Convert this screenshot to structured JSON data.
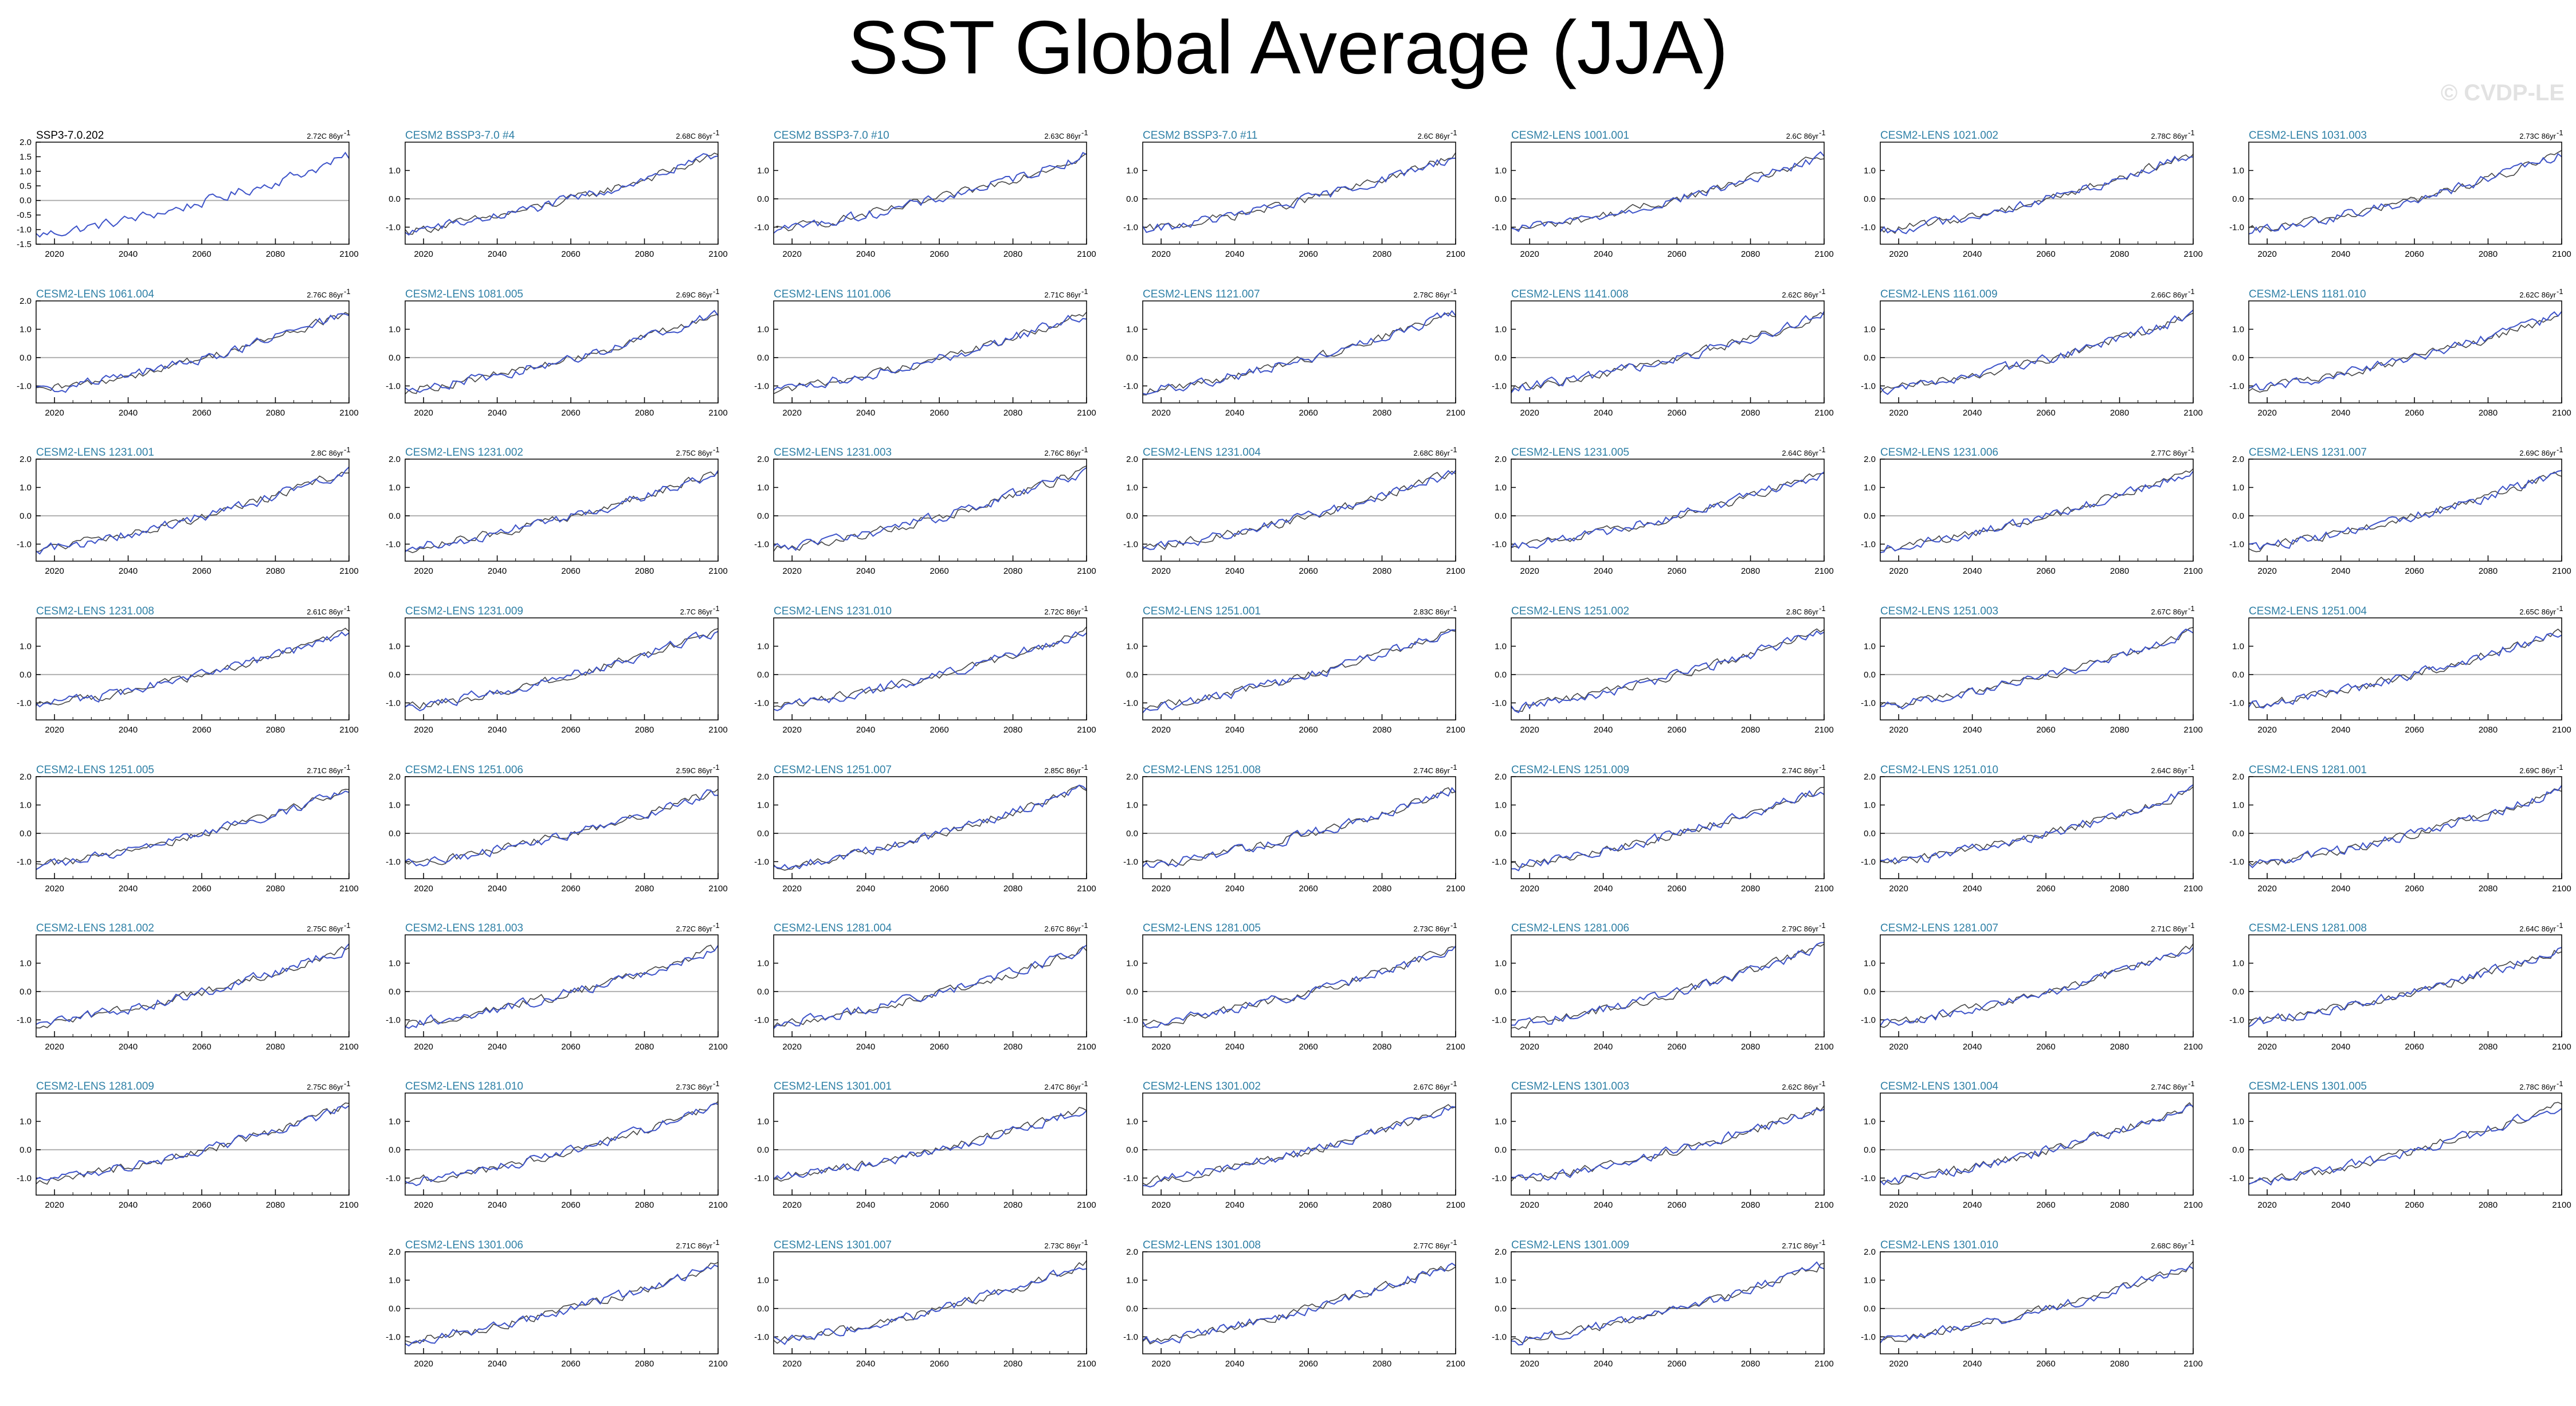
{
  "title": "SST Global Average (JJA)",
  "watermark": "© CVDP-LE",
  "colors": {
    "obs": "#000000",
    "model_line": "#3d53c9",
    "model_title": "#2f80a6",
    "zero_line": "#b0b0b0"
  },
  "chart_data": {
    "type": "line",
    "x_range": [
      2015,
      2100
    ],
    "x_ticks": [
      "2020",
      "2040",
      "2060",
      "2080",
      "2100"
    ],
    "panels": [
      {
        "name": "SSP3-7.0.202",
        "trend": "2.72C 86yr",
        "y_ticks": [
          "2.0",
          "1.5",
          "1.0",
          "0.5",
          "0.0",
          "-0.5",
          "-1.0",
          "-1.5"
        ],
        "ylim": [
          -1.5,
          2.0
        ],
        "start": -1.2,
        "end": 1.5,
        "obs": true
      },
      {
        "name": "CESM2 BSSP3-7.0 #4",
        "trend": "2.68C 86yr",
        "y_ticks": [
          "1.0",
          "0.0",
          "-1.0"
        ],
        "ylim": [
          -1.6,
          2.0
        ],
        "start": -1.15,
        "end": 1.55
      },
      {
        "name": "CESM2 BSSP3-7.0 #10",
        "trend": "2.63C 86yr",
        "y_ticks": [
          "1.0",
          "0.0",
          "-1.0"
        ],
        "ylim": [
          -1.6,
          2.0
        ],
        "start": -1.1,
        "end": 1.55
      },
      {
        "name": "CESM2 BSSP3-7.0 #11",
        "trend": "2.6C 86yr",
        "y_ticks": [
          "1.0",
          "0.0",
          "-1.0"
        ],
        "ylim": [
          -1.6,
          2.0
        ],
        "start": -1.1,
        "end": 1.5
      },
      {
        "name": "CESM2-LENS 1001.001",
        "trend": "2.6C 86yr",
        "y_ticks": [
          "1.0",
          "0.0",
          "-1.0"
        ],
        "ylim": [
          -1.6,
          2.0
        ],
        "start": -1.1,
        "end": 1.5
      },
      {
        "name": "CESM2-LENS 1021.002",
        "trend": "2.78C 86yr",
        "y_ticks": [
          "1.0",
          "0.0",
          "-1.0"
        ],
        "ylim": [
          -1.6,
          2.0
        ],
        "start": -1.15,
        "end": 1.6
      },
      {
        "name": "CESM2-LENS 1031.003",
        "trend": "2.73C 86yr",
        "y_ticks": [
          "1.0",
          "0.0",
          "-1.0"
        ],
        "ylim": [
          -1.6,
          2.0
        ],
        "start": -1.15,
        "end": 1.55
      },
      {
        "name": "CESM2-LENS 1061.004",
        "trend": "2.76C 86yr",
        "y_ticks": [
          "2.0",
          "1.0",
          "0.0",
          "-1.0"
        ],
        "ylim": [
          -1.6,
          2.0
        ],
        "start": -1.2,
        "end": 1.6
      },
      {
        "name": "CESM2-LENS 1081.005",
        "trend": "2.69C 86yr",
        "y_ticks": [
          "1.0",
          "0.0",
          "-1.0"
        ],
        "ylim": [
          -1.6,
          2.0
        ],
        "start": -1.15,
        "end": 1.55
      },
      {
        "name": "CESM2-LENS 1101.006",
        "trend": "2.71C 86yr",
        "y_ticks": [
          "1.0",
          "0.0",
          "-1.0"
        ],
        "ylim": [
          -1.6,
          2.0
        ],
        "start": -1.15,
        "end": 1.55
      },
      {
        "name": "CESM2-LENS 1121.007",
        "trend": "2.78C 86yr",
        "y_ticks": [
          "1.0",
          "0.0",
          "-1.0"
        ],
        "ylim": [
          -1.6,
          2.0
        ],
        "start": -1.2,
        "end": 1.6
      },
      {
        "name": "CESM2-LENS 1141.008",
        "trend": "2.62C 86yr",
        "y_ticks": [
          "1.0",
          "0.0",
          "-1.0"
        ],
        "ylim": [
          -1.6,
          2.0
        ],
        "start": -1.1,
        "end": 1.5
      },
      {
        "name": "CESM2-LENS 1161.009",
        "trend": "2.66C 86yr",
        "y_ticks": [
          "1.0",
          "0.0",
          "-1.0"
        ],
        "ylim": [
          -1.6,
          2.0
        ],
        "start": -1.15,
        "end": 1.5
      },
      {
        "name": "CESM2-LENS 1181.010",
        "trend": "2.62C 86yr",
        "y_ticks": [
          "1.0",
          "0.0",
          "-1.0"
        ],
        "ylim": [
          -1.6,
          2.0
        ],
        "start": -1.1,
        "end": 1.5
      },
      {
        "name": "CESM2-LENS 1231.001",
        "trend": "2.8C 86yr",
        "y_ticks": [
          "2.0",
          "1.0",
          "0.0",
          "-1.0"
        ],
        "ylim": [
          -1.6,
          2.0
        ],
        "start": -1.2,
        "end": 1.6
      },
      {
        "name": "CESM2-LENS 1231.002",
        "trend": "2.75C 86yr",
        "y_ticks": [
          "2.0",
          "1.0",
          "0.0",
          "-1.0"
        ],
        "ylim": [
          -1.6,
          2.0
        ],
        "start": -1.15,
        "end": 1.55
      },
      {
        "name": "CESM2-LENS 1231.003",
        "trend": "2.76C 86yr",
        "y_ticks": [
          "2.0",
          "1.0",
          "0.0",
          "-1.0"
        ],
        "ylim": [
          -1.6,
          2.0
        ],
        "start": -1.2,
        "end": 1.6
      },
      {
        "name": "CESM2-LENS 1231.004",
        "trend": "2.68C 86yr",
        "y_ticks": [
          "2.0",
          "1.0",
          "0.0",
          "-1.0"
        ],
        "ylim": [
          -1.6,
          2.0
        ],
        "start": -1.15,
        "end": 1.55
      },
      {
        "name": "CESM2-LENS 1231.005",
        "trend": "2.64C 86yr",
        "y_ticks": [
          "2.0",
          "1.0",
          "0.0",
          "-1.0"
        ],
        "ylim": [
          -1.6,
          2.0
        ],
        "start": -1.1,
        "end": 1.5
      },
      {
        "name": "CESM2-LENS 1231.006",
        "trend": "2.77C 86yr",
        "y_ticks": [
          "2.0",
          "1.0",
          "0.0",
          "-1.0"
        ],
        "ylim": [
          -1.6,
          2.0
        ],
        "start": -1.2,
        "end": 1.6
      },
      {
        "name": "CESM2-LENS 1231.007",
        "trend": "2.69C 86yr",
        "y_ticks": [
          "2.0",
          "1.0",
          "0.0",
          "-1.0"
        ],
        "ylim": [
          -1.6,
          2.0
        ],
        "start": -1.15,
        "end": 1.55
      },
      {
        "name": "CESM2-LENS 1231.008",
        "trend": "2.61C 86yr",
        "y_ticks": [
          "1.0",
          "0.0",
          "-1.0"
        ],
        "ylim": [
          -1.6,
          2.0
        ],
        "start": -1.1,
        "end": 1.5
      },
      {
        "name": "CESM2-LENS 1231.009",
        "trend": "2.7C 86yr",
        "y_ticks": [
          "1.0",
          "0.0",
          "-1.0"
        ],
        "ylim": [
          -1.6,
          2.0
        ],
        "start": -1.15,
        "end": 1.55
      },
      {
        "name": "CESM2-LENS 1231.010",
        "trend": "2.72C 86yr",
        "y_ticks": [
          "1.0",
          "0.0",
          "-1.0"
        ],
        "ylim": [
          -1.6,
          2.0
        ],
        "start": -1.15,
        "end": 1.55
      },
      {
        "name": "CESM2-LENS 1251.001",
        "trend": "2.83C 86yr",
        "y_ticks": [
          "1.0",
          "0.0",
          "-1.0"
        ],
        "ylim": [
          -1.6,
          2.0
        ],
        "start": -1.2,
        "end": 1.6
      },
      {
        "name": "CESM2-LENS 1251.002",
        "trend": "2.8C 86yr",
        "y_ticks": [
          "1.0",
          "0.0",
          "-1.0"
        ],
        "ylim": [
          -1.6,
          2.0
        ],
        "start": -1.2,
        "end": 1.6
      },
      {
        "name": "CESM2-LENS 1251.003",
        "trend": "2.67C 86yr",
        "y_ticks": [
          "1.0",
          "0.0",
          "-1.0"
        ],
        "ylim": [
          -1.6,
          2.0
        ],
        "start": -1.15,
        "end": 1.5
      },
      {
        "name": "CESM2-LENS 1251.004",
        "trend": "2.65C 86yr",
        "y_ticks": [
          "1.0",
          "0.0",
          "-1.0"
        ],
        "ylim": [
          -1.6,
          2.0
        ],
        "start": -1.1,
        "end": 1.55
      },
      {
        "name": "CESM2-LENS 1251.005",
        "trend": "2.71C 86yr",
        "y_ticks": [
          "2.0",
          "1.0",
          "0.0",
          "-1.0"
        ],
        "ylim": [
          -1.6,
          2.0
        ],
        "start": -1.15,
        "end": 1.55
      },
      {
        "name": "CESM2-LENS 1251.006",
        "trend": "2.59C 86yr",
        "y_ticks": [
          "2.0",
          "1.0",
          "0.0",
          "-1.0"
        ],
        "ylim": [
          -1.6,
          2.0
        ],
        "start": -1.1,
        "end": 1.5
      },
      {
        "name": "CESM2-LENS 1251.007",
        "trend": "2.85C 86yr",
        "y_ticks": [
          "2.0",
          "1.0",
          "0.0",
          "-1.0"
        ],
        "ylim": [
          -1.6,
          2.0
        ],
        "start": -1.2,
        "end": 1.65
      },
      {
        "name": "CESM2-LENS 1251.008",
        "trend": "2.74C 86yr",
        "y_ticks": [
          "2.0",
          "1.0",
          "0.0",
          "-1.0"
        ],
        "ylim": [
          -1.6,
          2.0
        ],
        "start": -1.15,
        "end": 1.55
      },
      {
        "name": "CESM2-LENS 1251.009",
        "trend": "2.74C 86yr",
        "y_ticks": [
          "2.0",
          "1.0",
          "0.0",
          "-1.0"
        ],
        "ylim": [
          -1.6,
          2.0
        ],
        "start": -1.15,
        "end": 1.55
      },
      {
        "name": "CESM2-LENS 1251.010",
        "trend": "2.64C 86yr",
        "y_ticks": [
          "2.0",
          "1.0",
          "0.0",
          "-1.0"
        ],
        "ylim": [
          -1.6,
          2.0
        ],
        "start": -1.1,
        "end": 1.5
      },
      {
        "name": "CESM2-LENS 1281.001",
        "trend": "2.69C 86yr",
        "y_ticks": [
          "2.0",
          "1.0",
          "0.0",
          "-1.0"
        ],
        "ylim": [
          -1.6,
          2.0
        ],
        "start": -1.15,
        "end": 1.55
      },
      {
        "name": "CESM2-LENS 1281.002",
        "trend": "2.75C 86yr",
        "y_ticks": [
          "1.0",
          "0.0",
          "-1.0"
        ],
        "ylim": [
          -1.6,
          2.0
        ],
        "start": -1.15,
        "end": 1.55
      },
      {
        "name": "CESM2-LENS 1281.003",
        "trend": "2.72C 86yr",
        "y_ticks": [
          "1.0",
          "0.0",
          "-1.0"
        ],
        "ylim": [
          -1.6,
          2.0
        ],
        "start": -1.15,
        "end": 1.55
      },
      {
        "name": "CESM2-LENS 1281.004",
        "trend": "2.67C 86yr",
        "y_ticks": [
          "1.0",
          "0.0",
          "-1.0"
        ],
        "ylim": [
          -1.6,
          2.0
        ],
        "start": -1.15,
        "end": 1.5
      },
      {
        "name": "CESM2-LENS 1281.005",
        "trend": "2.73C 86yr",
        "y_ticks": [
          "1.0",
          "0.0",
          "-1.0"
        ],
        "ylim": [
          -1.6,
          2.0
        ],
        "start": -1.15,
        "end": 1.55
      },
      {
        "name": "CESM2-LENS 1281.006",
        "trend": "2.79C 86yr",
        "y_ticks": [
          "1.0",
          "0.0",
          "-1.0"
        ],
        "ylim": [
          -1.6,
          2.0
        ],
        "start": -1.2,
        "end": 1.6
      },
      {
        "name": "CESM2-LENS 1281.007",
        "trend": "2.71C 86yr",
        "y_ticks": [
          "1.0",
          "0.0",
          "-1.0"
        ],
        "ylim": [
          -1.6,
          2.0
        ],
        "start": -1.15,
        "end": 1.55
      },
      {
        "name": "CESM2-LENS 1281.008",
        "trend": "2.64C 86yr",
        "y_ticks": [
          "1.0",
          "0.0",
          "-1.0"
        ],
        "ylim": [
          -1.6,
          2.0
        ],
        "start": -1.1,
        "end": 1.5
      },
      {
        "name": "CESM2-LENS 1281.009",
        "trend": "2.75C 86yr",
        "y_ticks": [
          "1.0",
          "0.0",
          "-1.0"
        ],
        "ylim": [
          -1.6,
          2.0
        ],
        "start": -1.15,
        "end": 1.55
      },
      {
        "name": "CESM2-LENS 1281.010",
        "trend": "2.73C 86yr",
        "y_ticks": [
          "1.0",
          "0.0",
          "-1.0"
        ],
        "ylim": [
          -1.6,
          2.0
        ],
        "start": -1.15,
        "end": 1.55
      },
      {
        "name": "CESM2-LENS 1301.001",
        "trend": "2.47C 86yr",
        "y_ticks": [
          "1.0",
          "0.0",
          "-1.0"
        ],
        "ylim": [
          -1.6,
          2.0
        ],
        "start": -1.0,
        "end": 1.45
      },
      {
        "name": "CESM2-LENS 1301.002",
        "trend": "2.67C 86yr",
        "y_ticks": [
          "1.0",
          "0.0",
          "-1.0"
        ],
        "ylim": [
          -1.6,
          2.0
        ],
        "start": -1.15,
        "end": 1.5
      },
      {
        "name": "CESM2-LENS 1301.003",
        "trend": "2.62C 86yr",
        "y_ticks": [
          "1.0",
          "0.0",
          "-1.0"
        ],
        "ylim": [
          -1.6,
          2.0
        ],
        "start": -1.1,
        "end": 1.5
      },
      {
        "name": "CESM2-LENS 1301.004",
        "trend": "2.74C 86yr",
        "y_ticks": [
          "1.0",
          "0.0",
          "-1.0"
        ],
        "ylim": [
          -1.6,
          2.0
        ],
        "start": -1.15,
        "end": 1.55
      },
      {
        "name": "CESM2-LENS 1301.005",
        "trend": "2.78C 86yr",
        "y_ticks": [
          "1.0",
          "0.0",
          "-1.0"
        ],
        "ylim": [
          -1.6,
          2.0
        ],
        "start": -1.2,
        "end": 1.6
      },
      {
        "name": "CESM2-LENS 1301.006",
        "trend": "2.71C 86yr",
        "y_ticks": [
          "2.0",
          "1.0",
          "0.0",
          "-1.0"
        ],
        "ylim": [
          -1.6,
          2.0
        ],
        "start": -1.15,
        "end": 1.55
      },
      {
        "name": "CESM2-LENS 1301.007",
        "trend": "2.73C 86yr",
        "y_ticks": [
          "1.0",
          "0.0",
          "-1.0"
        ],
        "ylim": [
          -1.6,
          2.0
        ],
        "start": -1.15,
        "end": 1.55
      },
      {
        "name": "CESM2-LENS 1301.008",
        "trend": "2.77C 86yr",
        "y_ticks": [
          "2.0",
          "1.0",
          "0.0",
          "-1.0"
        ],
        "ylim": [
          -1.6,
          2.0
        ],
        "start": -1.2,
        "end": 1.6
      },
      {
        "name": "CESM2-LENS 1301.009",
        "trend": "2.71C 86yr",
        "y_ticks": [
          "2.0",
          "1.0",
          "0.0",
          "-1.0"
        ],
        "ylim": [
          -1.6,
          2.0
        ],
        "start": -1.15,
        "end": 1.55
      },
      {
        "name": "CESM2-LENS 1301.010",
        "trend": "2.68C 86yr",
        "y_ticks": [
          "2.0",
          "1.0",
          "0.0",
          "-1.0"
        ],
        "ylim": [
          -1.6,
          2.0
        ],
        "start": -1.15,
        "end": 1.55
      }
    ]
  }
}
